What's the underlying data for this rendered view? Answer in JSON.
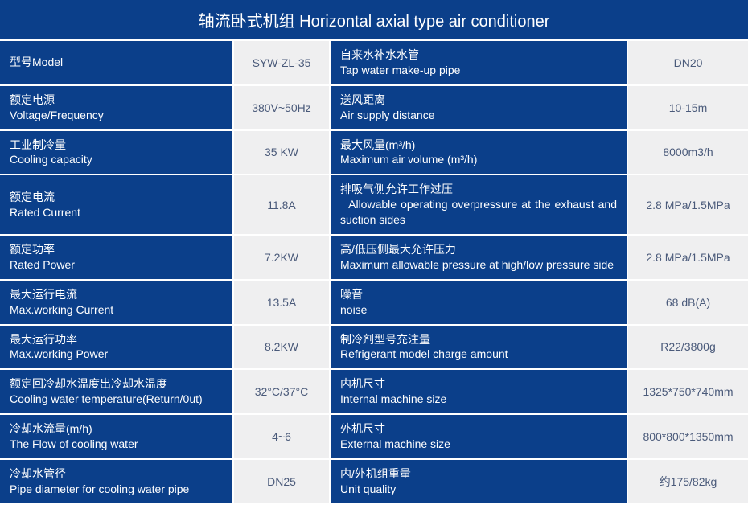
{
  "title": "轴流卧式机组 Horizontal axial type air conditioner",
  "colors": {
    "header_bg": "#0b3f8a",
    "header_fg": "#ffffff",
    "value_bg": "#efeff0",
    "value_fg": "#4a5a7a",
    "border": "#ffffff"
  },
  "rows": [
    {
      "left_cn": "型号Model",
      "left_en": "",
      "left_val": "SYW-ZL-35",
      "right_cn": "自来水补水水管",
      "right_en": "Tap water make-up pipe",
      "right_val": "DN20"
    },
    {
      "left_cn": "额定电源",
      "left_en": "Voltage/Frequency",
      "left_val": "380V~50Hz",
      "right_cn": "送风距离",
      "right_en": "Air supply distance",
      "right_val": "10-15m"
    },
    {
      "left_cn": "工业制冷量",
      "left_en": "Cooling capacity",
      "left_val": "35 KW",
      "right_cn": "最大风量(m³/h)",
      "right_en": "Maximum air volume (m³/h)",
      "right_val": "8000m3/h"
    },
    {
      "left_cn": "额定电流",
      "left_en": "Rated Current",
      "left_val": "11.8A",
      "right_cn": "排吸气侧允许工作过压",
      "right_en": "  Allowable operating overpressure at the exhaust and suction sides",
      "right_val": "2.8 MPa/1.5MPa"
    },
    {
      "left_cn": "额定功率",
      "left_en": "Rated Power",
      "left_val": "7.2KW",
      "right_cn": "高/低压侧最大允许压力",
      "right_en": "Maximum allowable pressure at high/low pressure side",
      "right_val": "2.8 MPa/1.5MPa"
    },
    {
      "left_cn": "最大运行电流",
      "left_en": "Max.working Current",
      "left_val": "13.5A",
      "right_cn": "噪音",
      "right_en": "noise",
      "right_val": "68 dB(A)"
    },
    {
      "left_cn": "最大运行功率",
      "left_en": "Max.working Power",
      "left_val": "8.2KW",
      "right_cn": "制冷剂型号充注量",
      "right_en": "Refrigerant model charge amount",
      "right_val": "R22/3800g"
    },
    {
      "left_cn": "额定回冷却水温度出冷却水温度",
      "left_en": "Cooling water temperature(Return/0ut)",
      "left_val": "32°C/37°C",
      "right_cn": "内机尺寸",
      "right_en": "Internal machine size",
      "right_val": "1325*750*740mm"
    },
    {
      "left_cn": "冷却水流量(m/h)",
      "left_en": "The Flow of cooling water",
      "left_val": "4~6",
      "right_cn": "外机尺寸",
      "right_en": "External machine size",
      "right_val": "800*800*1350mm"
    },
    {
      "left_cn": "冷却水管径",
      "left_en": "Pipe diameter for cooling water pipe",
      "left_val": "DN25",
      "right_cn": "内/外机组重量",
      "right_en": "Unit quality",
      "right_val": "约175/82kg"
    }
  ]
}
